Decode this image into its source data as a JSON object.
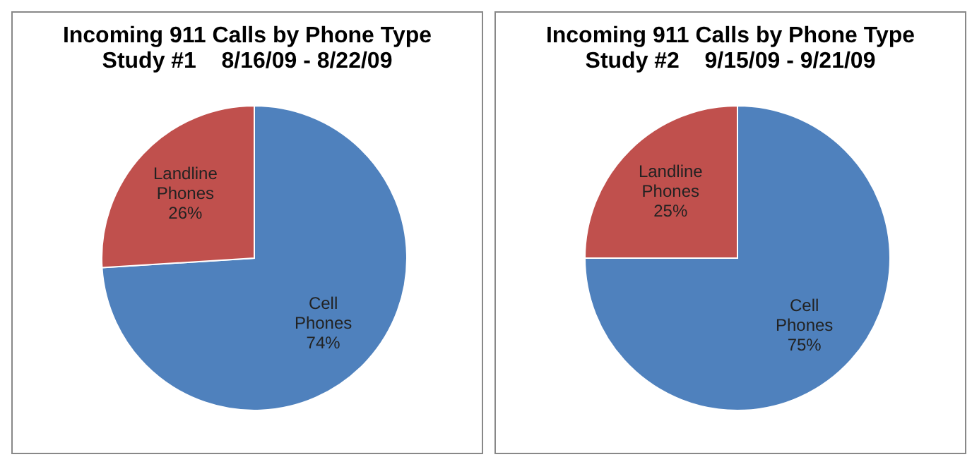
{
  "chart_data": [
    {
      "type": "pie",
      "title": "Incoming 911 Calls by Phone Type",
      "subtitle": "Study #1    8/16/09 - 8/22/09",
      "categories": [
        "Cell Phones",
        "Landline Phones"
      ],
      "values": [
        74,
        26
      ],
      "colors": [
        "#4f81bd",
        "#c0504d"
      ],
      "value_labels": [
        "74%",
        "26%"
      ],
      "legend": false
    },
    {
      "type": "pie",
      "title": "Incoming 911 Calls by Phone Type",
      "subtitle": "Study #2    9/15/09 - 9/21/09",
      "categories": [
        "Cell Phones",
        "Landline Phones"
      ],
      "values": [
        75,
        25
      ],
      "colors": [
        "#4f81bd",
        "#c0504d"
      ],
      "value_labels": [
        "75%",
        "25%"
      ],
      "legend": false
    }
  ]
}
